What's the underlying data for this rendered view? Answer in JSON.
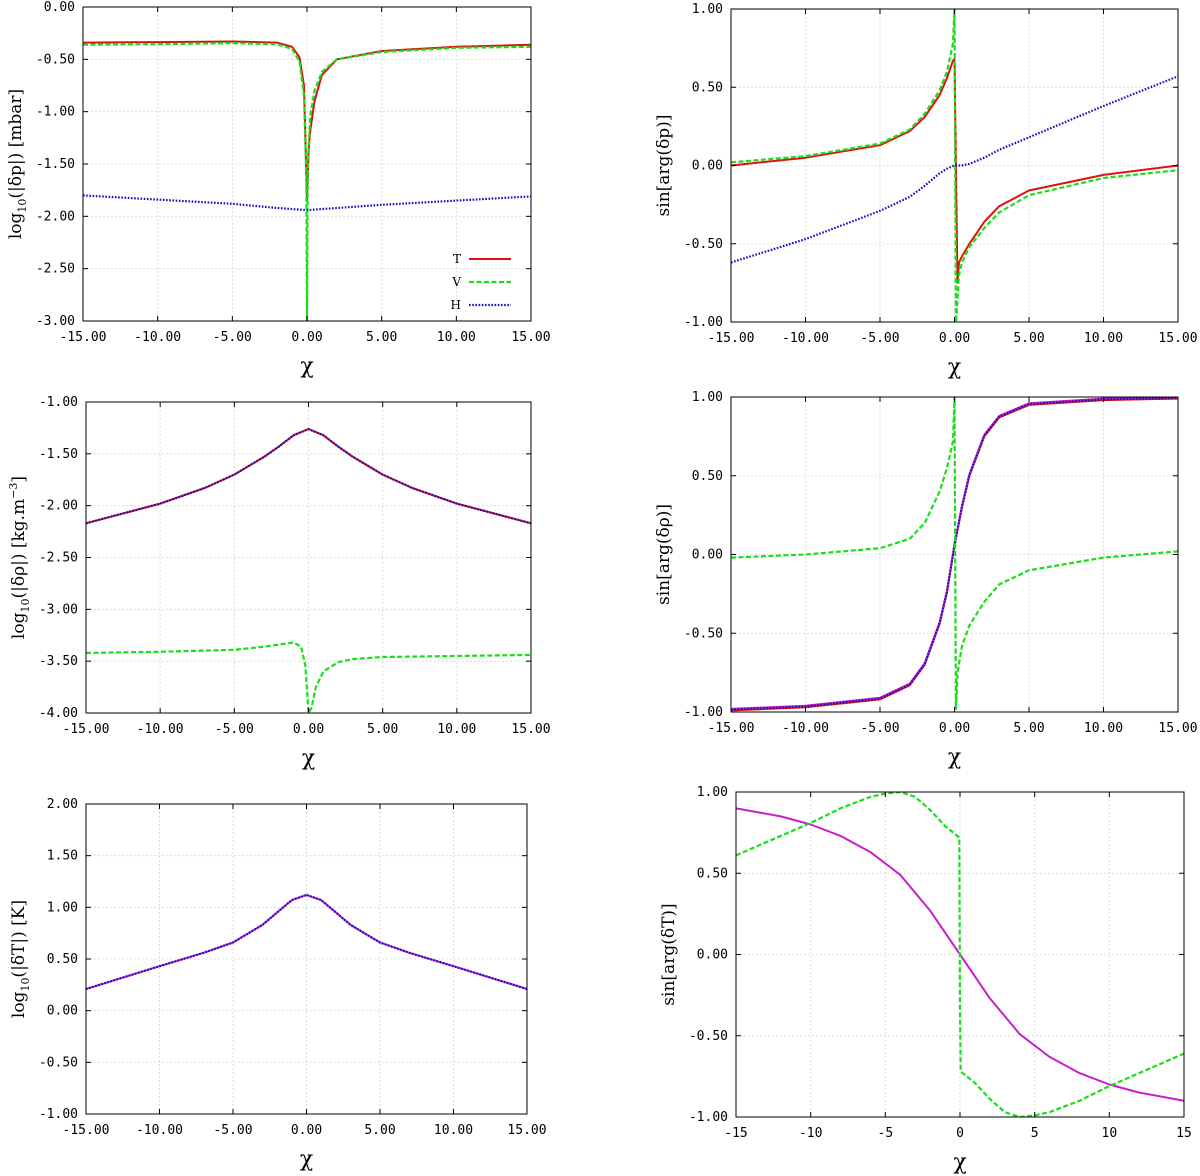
{
  "colors": {
    "T": "#e01010",
    "V": "#18e018",
    "H": "#1010c0",
    "magenta": "#c820c8"
  },
  "legend": {
    "items": [
      {
        "key": "T",
        "label": "T"
      },
      {
        "key": "V",
        "label": "V"
      },
      {
        "key": "H",
        "label": "H"
      }
    ]
  },
  "chart_data": [
    {
      "id": "p1",
      "type": "line",
      "title": "",
      "xlabel": "χ",
      "ylabel_main": "log",
      "ylabel_sub": "10",
      "ylabel_rest": "(|δp|) [mbar]",
      "xlim": [
        -15,
        15
      ],
      "ylim": [
        -3,
        0
      ],
      "xticks": [
        -15,
        -10,
        -5,
        0,
        5,
        10,
        15
      ],
      "xtick_labels": [
        "-15.00",
        "-10.00",
        "-5.00",
        "0.00",
        "5.00",
        "10.00",
        "15.00"
      ],
      "yticks": [
        -3,
        -2.5,
        -2,
        -1.5,
        -1,
        -0.5,
        0
      ],
      "ytick_labels": [
        "-3.00",
        "-2.50",
        "-2.00",
        "-1.50",
        "-1.00",
        "-0.50",
        "0.00"
      ],
      "legend": true,
      "series": [
        {
          "name": "T",
          "color_key": "T",
          "style": "solid",
          "x": [
            -15,
            -10,
            -5,
            -2,
            -1,
            -0.5,
            -0.2,
            0,
            0.1,
            0.2,
            0.5,
            1,
            2,
            5,
            10,
            15
          ],
          "y": [
            -0.34,
            -0.335,
            -0.33,
            -0.34,
            -0.38,
            -0.48,
            -0.75,
            -1.85,
            -1.4,
            -1.2,
            -0.9,
            -0.65,
            -0.5,
            -0.42,
            -0.38,
            -0.36
          ]
        },
        {
          "name": "V",
          "color_key": "V",
          "style": "dashed",
          "x": [
            -15,
            -10,
            -5,
            -2,
            -1,
            -0.5,
            -0.2,
            -0.05,
            0,
            0.05,
            0.2,
            0.5,
            1,
            2,
            5,
            10,
            15
          ],
          "y": [
            -0.36,
            -0.355,
            -0.345,
            -0.355,
            -0.4,
            -0.52,
            -0.85,
            -1.6,
            -3.0,
            -1.6,
            -1.05,
            -0.8,
            -0.62,
            -0.5,
            -0.43,
            -0.39,
            -0.38
          ]
        },
        {
          "name": "H",
          "color_key": "H",
          "style": "dotted",
          "x": [
            -15,
            -10,
            -5,
            -2,
            0,
            2,
            5,
            10,
            15
          ],
          "y": [
            -1.8,
            -1.84,
            -1.88,
            -1.92,
            -1.94,
            -1.92,
            -1.89,
            -1.85,
            -1.81
          ]
        }
      ]
    },
    {
      "id": "p2",
      "type": "line",
      "title": "",
      "xlabel": "χ",
      "ylabel_main": "sin[arg(δp)]",
      "ylabel_sub": "",
      "ylabel_rest": "",
      "xlim": [
        -15,
        15
      ],
      "ylim": [
        -1,
        1
      ],
      "xticks": [
        -15,
        -10,
        -5,
        0,
        5,
        10,
        15
      ],
      "xtick_labels": [
        "-15.00",
        "-10.00",
        "-5.00",
        "0.00",
        "5.00",
        "10.00",
        "15.00"
      ],
      "yticks": [
        -1,
        -0.5,
        0,
        0.5,
        1
      ],
      "ytick_labels": [
        "-1.00",
        "-0.50",
        "0.00",
        "0.50",
        "1.00"
      ],
      "legend": false,
      "series": [
        {
          "name": "T",
          "color_key": "T",
          "style": "solid",
          "x": [
            -15,
            -10,
            -5,
            -3,
            -2,
            -1,
            -0.5,
            -0.1,
            0,
            0.2,
            0.3,
            0.5,
            1,
            2,
            3,
            5,
            10,
            15
          ],
          "y": [
            0.0,
            0.05,
            0.13,
            0.22,
            0.31,
            0.45,
            0.56,
            0.67,
            0.68,
            -0.75,
            -0.62,
            -0.58,
            -0.5,
            -0.36,
            -0.26,
            -0.16,
            -0.06,
            0.0
          ]
        },
        {
          "name": "V",
          "color_key": "V",
          "style": "dashed",
          "x": [
            -15,
            -10,
            -5,
            -3,
            -2,
            -1,
            -0.5,
            -0.1,
            0,
            0.05,
            0.1,
            0.2,
            0.3,
            0.5,
            1,
            2,
            3,
            5,
            10,
            15
          ],
          "y": [
            0.02,
            0.06,
            0.14,
            0.23,
            0.33,
            0.48,
            0.6,
            0.78,
            1.0,
            0.0,
            -1.0,
            -0.85,
            -0.7,
            -0.62,
            -0.52,
            -0.4,
            -0.3,
            -0.19,
            -0.08,
            -0.03
          ]
        },
        {
          "name": "H",
          "color_key": "H",
          "style": "dotted",
          "x": [
            -15,
            -10,
            -5,
            -3,
            -2,
            -1,
            -0.5,
            0,
            0.5,
            1,
            2,
            3,
            5,
            10,
            15
          ],
          "y": [
            -0.62,
            -0.47,
            -0.29,
            -0.2,
            -0.13,
            -0.05,
            -0.02,
            0.0,
            0.0,
            0.01,
            0.05,
            0.1,
            0.18,
            0.38,
            0.57
          ]
        }
      ]
    },
    {
      "id": "p3",
      "type": "line",
      "title": "",
      "xlabel": "χ",
      "ylabel_main": "log",
      "ylabel_sub": "10",
      "ylabel_rest": "(|δρ|) [kg.m",
      "ylabel_sup": "−3",
      "ylabel_end": "]",
      "xlim": [
        -15,
        15
      ],
      "ylim": [
        -4,
        -1
      ],
      "xticks": [
        -15,
        -10,
        -5,
        0,
        5,
        10,
        15
      ],
      "xtick_labels": [
        "-15.00",
        "-10.00",
        "-5.00",
        "0.00",
        "5.00",
        "10.00",
        "15.00"
      ],
      "yticks": [
        -4,
        -3.5,
        -3,
        -2.5,
        -2,
        -1.5,
        -1
      ],
      "ytick_labels": [
        "-4.00",
        "-3.50",
        "-3.00",
        "-2.50",
        "-2.00",
        "-1.50",
        "-1.00"
      ],
      "legend": false,
      "series": [
        {
          "name": "T",
          "color_key": "T",
          "style": "solid",
          "x": [
            -15,
            -10,
            -7,
            -5,
            -3,
            -2,
            -1,
            0,
            1,
            2,
            3,
            5,
            7,
            10,
            15
          ],
          "y": [
            -2.17,
            -1.98,
            -1.83,
            -1.7,
            -1.53,
            -1.43,
            -1.32,
            -1.26,
            -1.32,
            -1.43,
            -1.53,
            -1.7,
            -1.83,
            -1.98,
            -2.17
          ]
        },
        {
          "name": "H",
          "color_key": "H",
          "style": "dotted",
          "x": [
            -15,
            -10,
            -7,
            -5,
            -3,
            -2,
            -1,
            0,
            1,
            2,
            3,
            5,
            7,
            10,
            15
          ],
          "y": [
            -2.17,
            -1.98,
            -1.83,
            -1.7,
            -1.53,
            -1.43,
            -1.32,
            -1.26,
            -1.32,
            -1.43,
            -1.53,
            -1.7,
            -1.83,
            -1.98,
            -2.17
          ]
        },
        {
          "name": "V",
          "color_key": "V",
          "style": "dashed",
          "x": [
            -15,
            -10,
            -5,
            -3,
            -2,
            -1,
            -0.5,
            -0.2,
            0,
            0.2,
            0.5,
            1,
            2,
            3,
            5,
            10,
            15
          ],
          "y": [
            -3.42,
            -3.41,
            -3.39,
            -3.36,
            -3.34,
            -3.32,
            -3.36,
            -3.55,
            -4.0,
            -3.95,
            -3.75,
            -3.6,
            -3.51,
            -3.48,
            -3.46,
            -3.45,
            -3.44
          ]
        }
      ]
    },
    {
      "id": "p4",
      "type": "line",
      "title": "",
      "xlabel": "χ",
      "ylabel_main": "sin[arg(δρ)]",
      "ylabel_sub": "",
      "ylabel_rest": "",
      "xlim": [
        -15,
        15
      ],
      "ylim": [
        -1,
        1
      ],
      "xticks": [
        -15,
        -10,
        -5,
        0,
        5,
        10,
        15
      ],
      "xtick_labels": [
        "-15.00",
        "-10.00",
        "-5.00",
        "0.00",
        "5.00",
        "10.00",
        "15.00"
      ],
      "yticks": [
        -1,
        -0.5,
        0,
        0.5,
        1
      ],
      "ytick_labels": [
        "-1.00",
        "-0.50",
        "0.00",
        "0.50",
        "1.00"
      ],
      "legend": false,
      "series": [
        {
          "name": "T",
          "color_key": "T",
          "style": "solid",
          "x": [
            -15,
            -10,
            -5,
            -3,
            -2,
            -1,
            -0.5,
            0,
            0.5,
            1,
            2,
            3,
            5,
            10,
            15
          ],
          "y": [
            -0.99,
            -0.97,
            -0.92,
            -0.83,
            -0.7,
            -0.44,
            -0.24,
            0.06,
            0.3,
            0.5,
            0.75,
            0.87,
            0.95,
            0.98,
            0.99
          ]
        },
        {
          "name": "magenta",
          "color_key": "magenta",
          "style": "solid",
          "x": [
            -15,
            -10,
            -5,
            -3,
            -2,
            -1,
            -0.5,
            0,
            0.5,
            1,
            2,
            3,
            5,
            10,
            15
          ],
          "y": [
            -0.98,
            -0.96,
            -0.91,
            -0.82,
            -0.69,
            -0.43,
            -0.23,
            0.06,
            0.31,
            0.51,
            0.76,
            0.88,
            0.96,
            0.99,
            1.0
          ]
        },
        {
          "name": "H",
          "color_key": "H",
          "style": "dotted",
          "x": [
            -15,
            -10,
            -5,
            -3,
            -2,
            -1,
            -0.5,
            0,
            0.5,
            1,
            2,
            3,
            5,
            10,
            15
          ],
          "y": [
            -0.985,
            -0.965,
            -0.915,
            -0.825,
            -0.695,
            -0.435,
            -0.235,
            0.06,
            0.305,
            0.505,
            0.755,
            0.875,
            0.955,
            0.985,
            0.995
          ]
        },
        {
          "name": "V",
          "color_key": "V",
          "style": "dashed",
          "x": [
            -15,
            -10,
            -5,
            -3,
            -2,
            -1,
            -0.5,
            -0.1,
            0,
            0.05,
            0.1,
            0.2,
            0.5,
            1,
            2,
            3,
            5,
            10,
            15
          ],
          "y": [
            -0.02,
            0.0,
            0.04,
            0.1,
            0.2,
            0.4,
            0.55,
            0.72,
            1.0,
            0.0,
            -0.98,
            -0.75,
            -0.58,
            -0.45,
            -0.3,
            -0.19,
            -0.1,
            -0.02,
            0.02
          ]
        }
      ]
    },
    {
      "id": "p5",
      "type": "line",
      "title": "",
      "xlabel": "χ",
      "ylabel_main": "log",
      "ylabel_sub": "10",
      "ylabel_rest": "(|δT|) [K]",
      "xlim": [
        -15,
        15
      ],
      "ylim": [
        -1,
        2
      ],
      "xticks": [
        -15,
        -10,
        -5,
        0,
        5,
        10,
        15
      ],
      "xtick_labels": [
        "-15.00",
        "-10.00",
        "-5.00",
        "0.00",
        "5.00",
        "10.00",
        "15.00"
      ],
      "yticks": [
        -1,
        -0.5,
        0,
        0.5,
        1,
        1.5,
        2
      ],
      "ytick_labels": [
        "-1.00",
        "-0.50",
        "0.00",
        "0.50",
        "1.00",
        "1.50",
        "2.00"
      ],
      "legend": false,
      "series": [
        {
          "name": "magenta",
          "color_key": "magenta",
          "style": "solid",
          "x": [
            -15,
            -10,
            -7,
            -5,
            -3,
            -2,
            -1,
            0,
            1,
            2,
            3,
            5,
            7,
            10,
            15
          ],
          "y": [
            0.21,
            0.43,
            0.56,
            0.66,
            0.83,
            0.95,
            1.07,
            1.12,
            1.07,
            0.95,
            0.83,
            0.66,
            0.56,
            0.43,
            0.21
          ]
        },
        {
          "name": "H",
          "color_key": "H",
          "style": "dotted",
          "x": [
            -15,
            -10,
            -7,
            -5,
            -3,
            -2,
            -1,
            0,
            1,
            2,
            3,
            5,
            7,
            10,
            15
          ],
          "y": [
            0.21,
            0.43,
            0.56,
            0.66,
            0.83,
            0.95,
            1.07,
            1.12,
            1.07,
            0.95,
            0.83,
            0.66,
            0.56,
            0.43,
            0.21
          ]
        }
      ]
    },
    {
      "id": "p6",
      "type": "line",
      "title": "",
      "xlabel": "χ",
      "ylabel_main": "sin[arg(δT)]",
      "ylabel_sub": "",
      "ylabel_rest": "",
      "xlim": [
        -15,
        15
      ],
      "ylim": [
        -1,
        1
      ],
      "xticks": [
        -15,
        -10,
        -5,
        0,
        5,
        10,
        15
      ],
      "xtick_labels": [
        "-15",
        "-10",
        "-5",
        "0",
        "5",
        "10",
        "15"
      ],
      "yticks": [
        -1,
        -0.5,
        0,
        0.5,
        1
      ],
      "ytick_labels": [
        "-1.00",
        "-0.50",
        "0.00",
        "0.50",
        "1.00"
      ],
      "legend": false,
      "series": [
        {
          "name": "magenta",
          "color_key": "magenta",
          "style": "solid",
          "x": [
            -15,
            -12,
            -10,
            -8,
            -6,
            -4,
            -2,
            0,
            2,
            4,
            6,
            8,
            10,
            12,
            15
          ],
          "y": [
            0.9,
            0.85,
            0.8,
            0.73,
            0.63,
            0.49,
            0.27,
            0.0,
            -0.27,
            -0.49,
            -0.63,
            -0.73,
            -0.8,
            -0.85,
            -0.9
          ]
        },
        {
          "name": "V",
          "color_key": "V",
          "style": "dashed",
          "x": [
            -15,
            -12,
            -10,
            -8,
            -6,
            -5,
            -4,
            -3,
            -2,
            -1,
            -0.05,
            0,
            0.05,
            1,
            2,
            3,
            4,
            5,
            6,
            8,
            10,
            12,
            15
          ],
          "y": [
            0.61,
            0.73,
            0.81,
            0.9,
            0.97,
            0.99,
            1.0,
            0.97,
            0.89,
            0.79,
            0.72,
            -0.35,
            -0.72,
            -0.79,
            -0.89,
            -0.97,
            -1.0,
            -0.99,
            -0.97,
            -0.9,
            -0.81,
            -0.73,
            -0.61
          ]
        }
      ]
    }
  ]
}
